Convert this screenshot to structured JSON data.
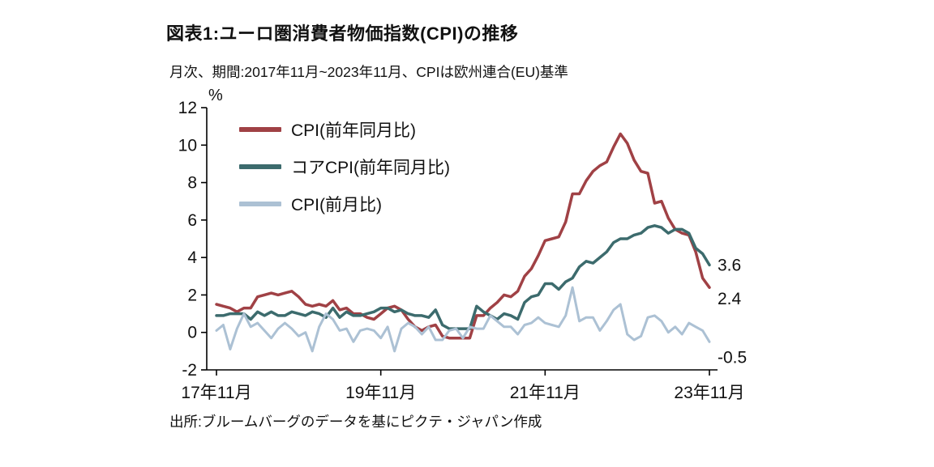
{
  "header": {
    "title": "図表1:ユーロ圏消費者物価指数(CPI)の推移",
    "subtitle": "月次、期間:2017年11月~2023年11月、CPIは欧州連合(EU)基準"
  },
  "footer": {
    "source": "出所:ブルームバーグのデータを基にピクテ・ジャパン作成"
  },
  "chart_data": {
    "type": "line",
    "title": "図表1:ユーロ圏消費者物価指数(CPI)の推移",
    "frequency": "monthly",
    "x_start": "2017-11",
    "x_end": "2023-11",
    "ylabel": "%",
    "ylim": [
      -2,
      12
    ],
    "yticks": [
      12,
      10,
      8,
      6,
      4,
      2,
      0,
      -2
    ],
    "xticks": [
      {
        "index": 0,
        "label": "17年11月"
      },
      {
        "index": 24,
        "label": "19年11月"
      },
      {
        "index": 48,
        "label": "21年11月"
      },
      {
        "index": 72,
        "label": "23年11月"
      }
    ],
    "grid": false,
    "legend_position": "inside-top-left",
    "axis_color": "#000000",
    "series": [
      {
        "name": "CPI(前年同月比)",
        "color": "#A04145",
        "width": 3.5,
        "end_label": "2.4",
        "values": [
          1.5,
          1.4,
          1.3,
          1.1,
          1.3,
          1.3,
          1.9,
          2.0,
          2.1,
          2.0,
          2.1,
          2.2,
          1.9,
          1.5,
          1.4,
          1.5,
          1.4,
          1.7,
          1.2,
          1.3,
          1.0,
          1.0,
          0.8,
          0.7,
          1.0,
          1.3,
          1.4,
          1.2,
          0.7,
          0.3,
          0.1,
          0.3,
          0.4,
          -0.2,
          -0.3,
          -0.3,
          -0.3,
          -0.3,
          0.9,
          0.9,
          1.3,
          1.6,
          2.0,
          1.9,
          2.2,
          3.0,
          3.4,
          4.1,
          4.9,
          5.0,
          5.1,
          5.9,
          7.4,
          7.4,
          8.1,
          8.6,
          8.9,
          9.1,
          9.9,
          10.6,
          10.1,
          9.2,
          8.6,
          8.5,
          6.9,
          7.0,
          6.1,
          5.5,
          5.3,
          5.2,
          4.3,
          2.9,
          2.4
        ]
      },
      {
        "name": "コアCPI(前年同月比)",
        "color": "#3C6B6D",
        "width": 3.5,
        "end_label": "3.6",
        "values": [
          0.9,
          0.9,
          1.0,
          1.0,
          1.0,
          0.7,
          1.1,
          0.9,
          1.1,
          0.9,
          0.9,
          1.1,
          1.0,
          0.9,
          1.1,
          1.0,
          0.8,
          1.3,
          0.8,
          1.1,
          0.9,
          0.9,
          1.0,
          1.1,
          1.3,
          1.3,
          1.1,
          1.2,
          1.0,
          0.9,
          0.9,
          0.8,
          1.2,
          0.4,
          0.2,
          0.2,
          0.2,
          0.2,
          1.4,
          1.1,
          0.9,
          0.7,
          1.0,
          0.9,
          0.7,
          1.6,
          1.9,
          2.0,
          2.6,
          2.6,
          2.3,
          2.7,
          2.9,
          3.5,
          3.8,
          3.7,
          4.0,
          4.3,
          4.8,
          5.0,
          5.0,
          5.2,
          5.3,
          5.6,
          5.7,
          5.6,
          5.3,
          5.5,
          5.5,
          5.3,
          4.5,
          4.2,
          3.6
        ]
      },
      {
        "name": "CPI(前月比)",
        "color": "#ACC1D4",
        "width": 3,
        "end_label": "-0.5",
        "values": [
          0.1,
          0.4,
          -0.9,
          0.2,
          1.0,
          0.3,
          0.5,
          0.1,
          -0.3,
          0.2,
          0.5,
          0.2,
          -0.2,
          0.0,
          -1.0,
          0.3,
          1.0,
          0.7,
          0.1,
          0.2,
          -0.5,
          0.1,
          0.2,
          0.1,
          -0.3,
          0.3,
          -1.0,
          0.2,
          0.5,
          0.3,
          -0.1,
          0.3,
          -0.4,
          -0.4,
          0.1,
          0.2,
          -0.3,
          0.3,
          0.2,
          0.2,
          0.9,
          0.6,
          0.3,
          0.3,
          -0.1,
          0.4,
          0.5,
          0.8,
          0.5,
          0.4,
          0.3,
          0.9,
          2.4,
          0.6,
          0.8,
          0.8,
          0.1,
          0.6,
          1.2,
          1.5,
          -0.1,
          -0.4,
          -0.2,
          0.8,
          0.9,
          0.6,
          0.0,
          0.3,
          -0.1,
          0.5,
          0.3,
          0.1,
          -0.5
        ]
      }
    ]
  }
}
